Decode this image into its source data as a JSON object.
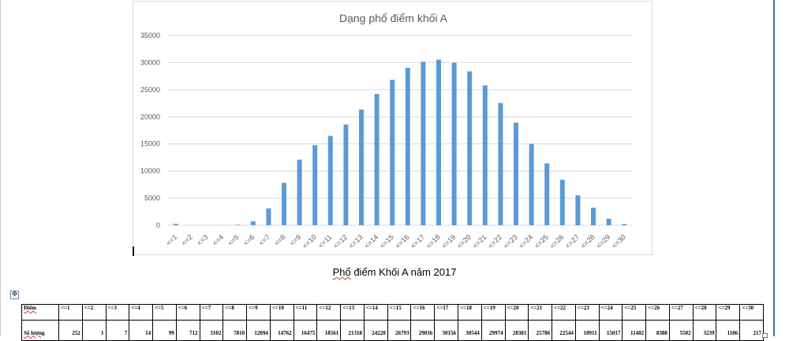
{
  "chart_data": {
    "type": "bar",
    "title": "Dạng phổ điểm khối A",
    "categories": [
      "<=1",
      "<=2",
      "<=3",
      "<=4",
      "<=5",
      "<=6",
      "<=7",
      "<=8",
      "<=9",
      "<=10",
      "<=11",
      "<=12",
      "<=13",
      "<=14",
      "<=15",
      "<=16",
      "<=17",
      "<=18",
      "<=19",
      "<=20",
      "<=21",
      "<=22",
      "<=23",
      "<=24",
      "<=25",
      "<=26",
      "<=27",
      "<=28",
      "<=29",
      "<=30"
    ],
    "values": [
      252,
      1,
      7,
      14,
      99,
      712,
      3102,
      7810,
      12094,
      14762,
      16475,
      18561,
      21318,
      24220,
      26793,
      29036,
      30156,
      30544,
      29974,
      28381,
      25786,
      22544,
      18911,
      15017,
      11402,
      8388,
      5502,
      3239,
      1186,
      217
    ],
    "ylim": [
      0,
      35000
    ],
    "yticks": [
      0,
      5000,
      10000,
      15000,
      20000,
      25000,
      30000,
      35000
    ],
    "grid": true,
    "bar_color": "#5b9bd5",
    "xlabel": "",
    "ylabel": ""
  },
  "caption": {
    "word_underlined": "Phổ",
    "rest": " điểm Khối A năm 2017"
  },
  "table": {
    "header_label": "Điểm",
    "values_label": "Số lượng"
  },
  "colors": {
    "grid": "#d9d9d9",
    "axis_text": "#595959",
    "title": "#595959"
  }
}
